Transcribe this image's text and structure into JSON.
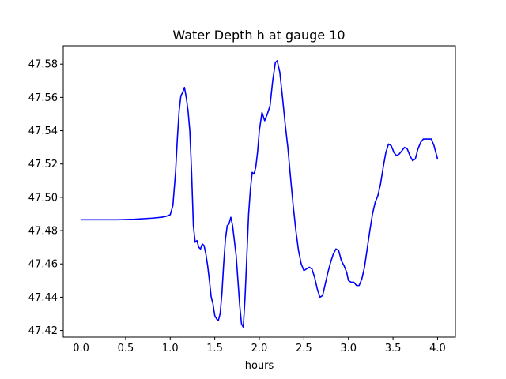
{
  "chart_data": {
    "type": "line",
    "title": "Water Depth h at gauge 10",
    "xlabel": "hours",
    "ylabel": "",
    "xlim": [
      -0.2,
      4.2
    ],
    "ylim": [
      47.416,
      47.591
    ],
    "xticks": [
      0.0,
      0.5,
      1.0,
      1.5,
      2.0,
      2.5,
      3.0,
      3.5,
      4.0
    ],
    "xtick_labels": [
      "0.0",
      "0.5",
      "1.0",
      "1.5",
      "2.0",
      "2.5",
      "3.0",
      "3.5",
      "4.0"
    ],
    "yticks": [
      47.42,
      47.44,
      47.46,
      47.48,
      47.5,
      47.52,
      47.54,
      47.56,
      47.58
    ],
    "ytick_labels": [
      "47.42",
      "47.44",
      "47.46",
      "47.48",
      "47.50",
      "47.52",
      "47.54",
      "47.56",
      "47.58"
    ],
    "grid": false,
    "series": [
      {
        "color": "#0000ff",
        "x": [
          0.0,
          0.2,
          0.4,
          0.6,
          0.8,
          0.9,
          0.95,
          1.0,
          1.03,
          1.06,
          1.08,
          1.1,
          1.12,
          1.14,
          1.16,
          1.18,
          1.2,
          1.22,
          1.24,
          1.26,
          1.28,
          1.3,
          1.32,
          1.34,
          1.36,
          1.38,
          1.4,
          1.42,
          1.44,
          1.46,
          1.48,
          1.5,
          1.52,
          1.54,
          1.56,
          1.58,
          1.6,
          1.62,
          1.64,
          1.66,
          1.68,
          1.7,
          1.72,
          1.74,
          1.76,
          1.78,
          1.8,
          1.82,
          1.84,
          1.86,
          1.88,
          1.9,
          1.92,
          1.94,
          1.96,
          1.98,
          2.0,
          2.03,
          2.06,
          2.09,
          2.12,
          2.15,
          2.18,
          2.2,
          2.23,
          2.26,
          2.29,
          2.32,
          2.35,
          2.38,
          2.41,
          2.44,
          2.47,
          2.5,
          2.53,
          2.56,
          2.59,
          2.62,
          2.65,
          2.68,
          2.71,
          2.74,
          2.77,
          2.8,
          2.83,
          2.86,
          2.89,
          2.92,
          2.95,
          2.98,
          3.0,
          3.03,
          3.06,
          3.09,
          3.12,
          3.15,
          3.18,
          3.21,
          3.24,
          3.27,
          3.3,
          3.33,
          3.36,
          3.39,
          3.42,
          3.45,
          3.48,
          3.51,
          3.54,
          3.57,
          3.6,
          3.63,
          3.66,
          3.69,
          3.72,
          3.75,
          3.78,
          3.81,
          3.84,
          3.87,
          3.9,
          3.93,
          3.96,
          4.0
        ],
        "y": [
          47.4865,
          47.4865,
          47.4865,
          47.4868,
          47.4875,
          47.488,
          47.4885,
          47.4895,
          47.495,
          47.515,
          47.535,
          47.552,
          47.561,
          47.563,
          47.566,
          47.56,
          47.552,
          47.54,
          47.515,
          47.483,
          47.473,
          47.474,
          47.47,
          47.469,
          47.472,
          47.471,
          47.466,
          47.459,
          47.45,
          47.44,
          47.436,
          47.429,
          47.427,
          47.426,
          47.43,
          47.442,
          47.46,
          47.475,
          47.483,
          47.484,
          47.488,
          47.483,
          47.474,
          47.465,
          47.45,
          47.435,
          47.424,
          47.422,
          47.44,
          47.465,
          47.49,
          47.505,
          47.515,
          47.514,
          47.518,
          47.527,
          47.54,
          47.551,
          47.546,
          47.55,
          47.555,
          47.57,
          47.581,
          47.582,
          47.575,
          47.56,
          47.544,
          47.53,
          47.512,
          47.495,
          47.48,
          47.468,
          47.46,
          47.456,
          47.457,
          47.458,
          47.457,
          47.452,
          47.445,
          47.44,
          47.441,
          47.448,
          47.455,
          47.461,
          47.466,
          47.469,
          47.468,
          47.462,
          47.459,
          47.455,
          47.45,
          47.449,
          47.449,
          47.447,
          47.447,
          47.451,
          47.458,
          47.469,
          47.48,
          47.49,
          47.497,
          47.501,
          47.508,
          47.518,
          47.527,
          47.532,
          47.531,
          47.527,
          47.525,
          47.526,
          47.528,
          47.53,
          47.529,
          47.525,
          47.522,
          47.523,
          47.529,
          47.533,
          47.535,
          47.535,
          47.535,
          47.535,
          47.531,
          47.523
        ]
      }
    ]
  }
}
